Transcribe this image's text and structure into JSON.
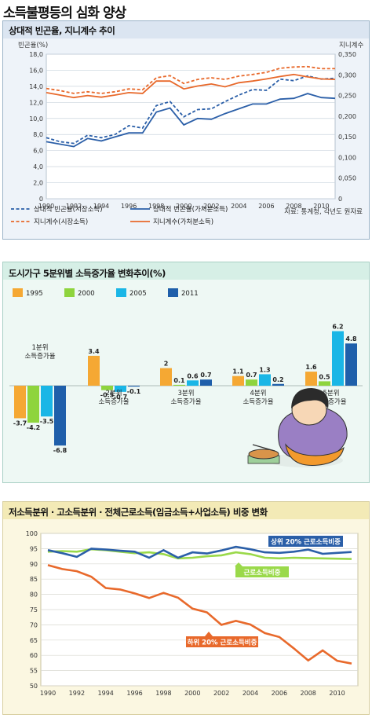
{
  "page": {
    "title": "소득불평등의 심화 양상"
  },
  "colors": {
    "blue": "#2b5fa8",
    "orange": "#e8692b",
    "bar_orange": "#f5a833",
    "bar_green": "#8ed43d",
    "bar_cyan": "#1ab6e6",
    "bar_blue": "#1f5faa",
    "green_line": "#9ad94a",
    "grid": "#c9d3de"
  },
  "chart_data": [
    {
      "type": "line",
      "title": "상대적 빈곤율, 지니계수 추이",
      "ylabel": "빈곤율(%)",
      "y2label": "지니계수",
      "source": "자료: 통계청, 각년도 원자료",
      "x": [
        1990,
        1991,
        1992,
        1993,
        1994,
        1995,
        1996,
        1997,
        1998,
        1999,
        2000,
        2001,
        2002,
        2003,
        2004,
        2005,
        2006,
        2007,
        2008,
        2009,
        2010,
        2011
      ],
      "xticks": [
        "1990",
        "1992",
        "1994",
        "1996",
        "1998",
        "2000",
        "2002",
        "2004",
        "2006",
        "2008",
        "2010"
      ],
      "ylim": [
        0,
        18
      ],
      "yticks": [
        "0",
        "2,0",
        "4,0",
        "6,0",
        "8,0",
        "10,0",
        "12,0",
        "14,0",
        "16,0",
        "18,0"
      ],
      "y2lim": [
        0,
        0.35
      ],
      "y2ticks": [
        "0",
        "0,050",
        "0,100",
        "0,150",
        "0,200",
        "0,250",
        "0,300",
        "0,350"
      ],
      "legend": [
        "상대적 빈곤율(시장소득)",
        "상대적 빈곤율(가처분소득)",
        "지니계수(시장소득)",
        "지니계수(가처분소득)"
      ],
      "series": [
        {
          "name": "상대적 빈곤율(시장소득)",
          "axis": "left",
          "style": "dashed",
          "color": "#2b5fa8",
          "values": [
            7.6,
            7.1,
            6.9,
            7.9,
            7.6,
            8.0,
            9.1,
            8.8,
            11.6,
            12.1,
            10.2,
            11.1,
            11.2,
            12.1,
            12.9,
            13.6,
            13.5,
            14.9,
            14.7,
            15.3,
            14.9,
            15.0
          ]
        },
        {
          "name": "상대적 빈곤율(가처분소득)",
          "axis": "left",
          "style": "solid",
          "color": "#2b5fa8",
          "values": [
            7.1,
            6.8,
            6.5,
            7.5,
            7.2,
            7.7,
            8.2,
            8.2,
            10.8,
            11.3,
            9.2,
            10.0,
            9.9,
            10.6,
            11.2,
            11.8,
            11.8,
            12.4,
            12.5,
            13.1,
            12.6,
            12.5
          ]
        },
        {
          "name": "지니계수(시장소득)",
          "axis": "right",
          "style": "dashed",
          "color": "#e8692b",
          "values": [
            0.267,
            0.262,
            0.255,
            0.259,
            0.255,
            0.259,
            0.266,
            0.264,
            0.293,
            0.298,
            0.279,
            0.289,
            0.293,
            0.289,
            0.297,
            0.301,
            0.306,
            0.316,
            0.319,
            0.32,
            0.315,
            0.315
          ]
        },
        {
          "name": "지니계수(가처분소득)",
          "axis": "right",
          "style": "solid",
          "color": "#e8692b",
          "values": [
            0.257,
            0.251,
            0.245,
            0.25,
            0.246,
            0.251,
            0.257,
            0.255,
            0.285,
            0.285,
            0.266,
            0.273,
            0.278,
            0.271,
            0.281,
            0.285,
            0.29,
            0.296,
            0.301,
            0.295,
            0.29,
            0.289
          ]
        }
      ]
    },
    {
      "type": "bar",
      "title": "도시가구 5분위별 소득증가율 변화추이(%)",
      "categories": [
        "1분위\n소득증가율",
        "2분위\n소득증가율",
        "3분위\n소득증가율",
        "4분위\n소득증가율",
        "5분위\n소득증가율"
      ],
      "legend": [
        "1995",
        "2000",
        "2005",
        "2011"
      ],
      "series": [
        {
          "name": "1995",
          "color": "#f5a833",
          "values": [
            -3.7,
            3.4,
            2.0,
            1.1,
            1.6
          ]
        },
        {
          "name": "2000",
          "color": "#8ed43d",
          "values": [
            -4.2,
            -0.5,
            0.1,
            0.7,
            0.5
          ]
        },
        {
          "name": "2005",
          "color": "#1ab6e6",
          "values": [
            -3.5,
            -0.7,
            0.6,
            1.3,
            6.2
          ]
        },
        {
          "name": "2011",
          "color": "#1f5faa",
          "values": [
            -6.8,
            -0.1,
            0.7,
            0.2,
            4.8
          ]
        }
      ]
    },
    {
      "type": "line",
      "title": "저소득분위 · 고소득분위 · 전체근로소득(임금소득+사업소득) 비중 변화",
      "x": [
        1990,
        1991,
        1992,
        1993,
        1994,
        1995,
        1996,
        1997,
        1998,
        1999,
        2000,
        2001,
        2002,
        2003,
        2004,
        2005,
        2006,
        2007,
        2008,
        2009,
        2010,
        2011
      ],
      "xticks": [
        "1990",
        "1992",
        "1994",
        "1996",
        "1998",
        "2000",
        "2002",
        "2004",
        "2006",
        "2008",
        "2010"
      ],
      "ylim": [
        50,
        100
      ],
      "yticks": [
        "50",
        "55",
        "60",
        "65",
        "70",
        "75",
        "80",
        "85",
        "90",
        "95",
        "100"
      ],
      "series": [
        {
          "name": "상위 20% 근로소득비중",
          "color": "#2b5fa8",
          "values": [
            94.5,
            93.5,
            92.3,
            95.0,
            94.7,
            94.3,
            94.0,
            92.0,
            94.5,
            92.0,
            93.8,
            93.4,
            94.4,
            95.6,
            94.8,
            93.8,
            93.6,
            94.0,
            94.7,
            93.3,
            93.6,
            93.9
          ]
        },
        {
          "name": "근로소득비중",
          "color": "#9ad94a",
          "values": [
            94.0,
            94.2,
            94.0,
            94.8,
            94.5,
            94.0,
            93.5,
            93.8,
            93.2,
            91.8,
            92.0,
            92.5,
            92.8,
            93.8,
            93.2,
            92.0,
            91.8,
            92.0,
            91.9,
            91.8,
            91.7,
            91.6
          ]
        },
        {
          "name": "하위 20% 근로소득비중",
          "color": "#e8692b",
          "values": [
            89.6,
            88.3,
            87.6,
            85.8,
            82.1,
            81.6,
            80.3,
            78.8,
            80.5,
            78.9,
            75.3,
            74.1,
            70.0,
            71.3,
            70.1,
            67.3,
            66.0,
            62.3,
            58.3,
            61.6,
            58.2,
            57.3
          ]
        }
      ]
    }
  ]
}
